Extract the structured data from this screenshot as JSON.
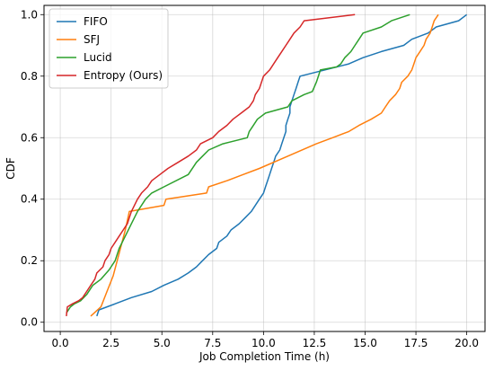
{
  "chart_data": {
    "type": "line",
    "title": "",
    "xlabel": "Job Completion Time (h)",
    "ylabel": "CDF",
    "xlim": [
      -0.8,
      20.9
    ],
    "ylim": [
      -0.03,
      1.03
    ],
    "xticks": [
      0.0,
      2.5,
      5.0,
      7.5,
      10.0,
      12.5,
      15.0,
      17.5,
      20.0
    ],
    "xtick_labels": [
      "0.0",
      "2.5",
      "5.0",
      "7.5",
      "10.0",
      "12.5",
      "15.0",
      "17.5",
      "20.0"
    ],
    "yticks": [
      0.0,
      0.2,
      0.4,
      0.6,
      0.8,
      1.0
    ],
    "ytick_labels": [
      "0.0",
      "0.2",
      "0.4",
      "0.6",
      "0.8",
      "1.0"
    ],
    "grid": true,
    "legend_position": "top-left",
    "series": [
      {
        "name": "FIFO",
        "color": "#1f77b4",
        "points": [
          [
            1.8,
            0.02
          ],
          [
            1.9,
            0.04
          ],
          [
            2.7,
            0.06
          ],
          [
            3.5,
            0.08
          ],
          [
            4.5,
            0.1
          ],
          [
            5.1,
            0.12
          ],
          [
            5.8,
            0.14
          ],
          [
            6.3,
            0.16
          ],
          [
            6.7,
            0.18
          ],
          [
            7.0,
            0.2
          ],
          [
            7.3,
            0.22
          ],
          [
            7.7,
            0.24
          ],
          [
            7.8,
            0.26
          ],
          [
            8.2,
            0.28
          ],
          [
            8.4,
            0.3
          ],
          [
            8.8,
            0.32
          ],
          [
            9.1,
            0.34
          ],
          [
            9.4,
            0.36
          ],
          [
            9.6,
            0.38
          ],
          [
            9.8,
            0.4
          ],
          [
            10.0,
            0.42
          ],
          [
            10.1,
            0.44
          ],
          [
            10.2,
            0.46
          ],
          [
            10.3,
            0.48
          ],
          [
            10.4,
            0.5
          ],
          [
            10.5,
            0.52
          ],
          [
            10.6,
            0.54
          ],
          [
            10.8,
            0.56
          ],
          [
            10.9,
            0.58
          ],
          [
            11.0,
            0.6
          ],
          [
            11.1,
            0.62
          ],
          [
            11.1,
            0.64
          ],
          [
            11.2,
            0.66
          ],
          [
            11.3,
            0.68
          ],
          [
            11.3,
            0.7
          ],
          [
            11.4,
            0.72
          ],
          [
            11.5,
            0.74
          ],
          [
            11.6,
            0.76
          ],
          [
            11.7,
            0.78
          ],
          [
            11.8,
            0.8
          ],
          [
            14.2,
            0.84
          ],
          [
            14.9,
            0.86
          ],
          [
            15.8,
            0.88
          ],
          [
            16.9,
            0.9
          ],
          [
            17.3,
            0.92
          ],
          [
            18.1,
            0.94
          ],
          [
            18.5,
            0.96
          ],
          [
            19.6,
            0.98
          ],
          [
            20.0,
            1.0
          ]
        ]
      },
      {
        "name": "SFJ",
        "color": "#ff7f0e",
        "points": [
          [
            1.5,
            0.02
          ],
          [
            2.0,
            0.05
          ],
          [
            2.3,
            0.1
          ],
          [
            2.6,
            0.15
          ],
          [
            2.8,
            0.2
          ],
          [
            3.0,
            0.25
          ],
          [
            3.2,
            0.3
          ],
          [
            3.4,
            0.36
          ],
          [
            5.1,
            0.38
          ],
          [
            5.2,
            0.4
          ],
          [
            7.2,
            0.42
          ],
          [
            7.3,
            0.44
          ],
          [
            8.2,
            0.46
          ],
          [
            9.0,
            0.48
          ],
          [
            9.8,
            0.5
          ],
          [
            11.2,
            0.54
          ],
          [
            12.6,
            0.58
          ],
          [
            13.4,
            0.6
          ],
          [
            14.2,
            0.62
          ],
          [
            14.7,
            0.64
          ],
          [
            15.3,
            0.66
          ],
          [
            15.8,
            0.68
          ],
          [
            16.0,
            0.7
          ],
          [
            16.2,
            0.72
          ],
          [
            16.5,
            0.74
          ],
          [
            16.7,
            0.76
          ],
          [
            16.8,
            0.78
          ],
          [
            17.1,
            0.8
          ],
          [
            17.3,
            0.82
          ],
          [
            17.4,
            0.84
          ],
          [
            17.5,
            0.86
          ],
          [
            17.7,
            0.88
          ],
          [
            17.9,
            0.9
          ],
          [
            18.0,
            0.92
          ],
          [
            18.2,
            0.94
          ],
          [
            18.3,
            0.96
          ],
          [
            18.4,
            0.98
          ],
          [
            18.6,
            1.0
          ]
        ]
      },
      {
        "name": "Lucid",
        "color": "#2ca02c",
        "points": [
          [
            0.3,
            0.03
          ],
          [
            0.5,
            0.05
          ],
          [
            0.7,
            0.06
          ],
          [
            1.0,
            0.07
          ],
          [
            1.3,
            0.09
          ],
          [
            1.6,
            0.12
          ],
          [
            2.0,
            0.14
          ],
          [
            2.4,
            0.17
          ],
          [
            2.7,
            0.2
          ],
          [
            2.9,
            0.24
          ],
          [
            3.2,
            0.28
          ],
          [
            3.5,
            0.32
          ],
          [
            3.8,
            0.36
          ],
          [
            4.2,
            0.4
          ],
          [
            4.5,
            0.42
          ],
          [
            5.1,
            0.44
          ],
          [
            6.3,
            0.48
          ],
          [
            6.7,
            0.52
          ],
          [
            7.0,
            0.54
          ],
          [
            7.3,
            0.56
          ],
          [
            8.0,
            0.58
          ],
          [
            9.2,
            0.6
          ],
          [
            9.3,
            0.62
          ],
          [
            9.5,
            0.64
          ],
          [
            9.7,
            0.66
          ],
          [
            10.1,
            0.68
          ],
          [
            11.2,
            0.7
          ],
          [
            11.4,
            0.72
          ],
          [
            12.0,
            0.74
          ],
          [
            12.4,
            0.75
          ],
          [
            12.6,
            0.78
          ],
          [
            12.7,
            0.8
          ],
          [
            12.8,
            0.82
          ],
          [
            13.6,
            0.83
          ],
          [
            13.8,
            0.84
          ],
          [
            14.0,
            0.86
          ],
          [
            14.3,
            0.88
          ],
          [
            14.5,
            0.9
          ],
          [
            14.7,
            0.92
          ],
          [
            14.9,
            0.94
          ],
          [
            15.8,
            0.96
          ],
          [
            16.3,
            0.98
          ],
          [
            17.2,
            1.0
          ]
        ]
      },
      {
        "name": "Entropy (Ours)",
        "color": "#d62728",
        "points": [
          [
            0.3,
            0.02
          ],
          [
            0.35,
            0.05
          ],
          [
            0.6,
            0.06
          ],
          [
            0.9,
            0.07
          ],
          [
            1.1,
            0.08
          ],
          [
            1.3,
            0.1
          ],
          [
            1.5,
            0.12
          ],
          [
            1.7,
            0.14
          ],
          [
            1.8,
            0.16
          ],
          [
            2.1,
            0.18
          ],
          [
            2.2,
            0.2
          ],
          [
            2.4,
            0.22
          ],
          [
            2.5,
            0.24
          ],
          [
            2.7,
            0.26
          ],
          [
            2.9,
            0.28
          ],
          [
            3.1,
            0.3
          ],
          [
            3.3,
            0.32
          ],
          [
            3.4,
            0.34
          ],
          [
            3.5,
            0.36
          ],
          [
            3.8,
            0.4
          ],
          [
            4.0,
            0.42
          ],
          [
            4.3,
            0.44
          ],
          [
            4.5,
            0.46
          ],
          [
            4.9,
            0.48
          ],
          [
            5.3,
            0.5
          ],
          [
            5.8,
            0.52
          ],
          [
            6.3,
            0.54
          ],
          [
            6.7,
            0.56
          ],
          [
            6.9,
            0.58
          ],
          [
            7.5,
            0.6
          ],
          [
            7.8,
            0.62
          ],
          [
            8.2,
            0.64
          ],
          [
            8.5,
            0.66
          ],
          [
            8.9,
            0.68
          ],
          [
            9.3,
            0.7
          ],
          [
            9.5,
            0.72
          ],
          [
            9.6,
            0.74
          ],
          [
            9.8,
            0.76
          ],
          [
            10.0,
            0.8
          ],
          [
            10.3,
            0.82
          ],
          [
            10.5,
            0.84
          ],
          [
            10.7,
            0.86
          ],
          [
            10.9,
            0.88
          ],
          [
            11.1,
            0.9
          ],
          [
            11.3,
            0.92
          ],
          [
            11.5,
            0.94
          ],
          [
            11.8,
            0.96
          ],
          [
            12.0,
            0.98
          ],
          [
            14.5,
            1.0
          ]
        ]
      }
    ]
  }
}
